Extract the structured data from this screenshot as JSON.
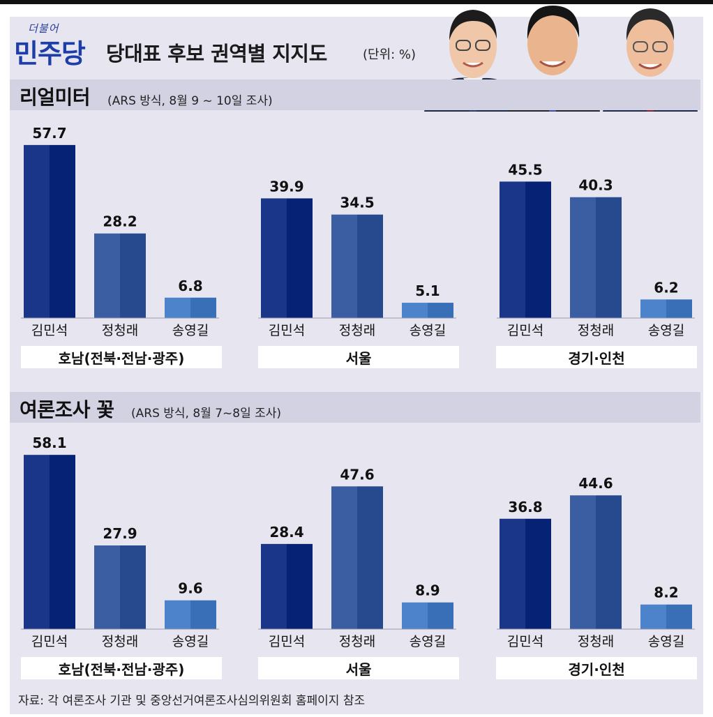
{
  "header": {
    "brand_small": "더불어",
    "brand": "민주당",
    "title": "당대표 후보 권역별 지지도",
    "unit": "(단위: %)"
  },
  "source": "자료: 각 여론조사 기관 및 중앙선거여론조사심의위원회 홈페이지 참조",
  "colors": {
    "kim": "#0d2a7c",
    "jung": "#2f5296",
    "song": "#4177bf"
  },
  "sections": [
    {
      "title": "리얼미터",
      "subtitle": "(ARS 방식, 8월 9 ~ 10일 조사)"
    },
    {
      "title": "여론조사 꽃",
      "subtitle": "(ARS 방식, 8월 7~8일 조사)"
    }
  ],
  "chart_data": [
    {
      "type": "bar",
      "title": "리얼미터",
      "categories": [
        "김민석",
        "정청래",
        "송영길"
      ],
      "groups": [
        "호남(전북·전남·광주)",
        "서울",
        "경기·인천"
      ],
      "series": [
        {
          "group": "호남(전북·전남·광주)",
          "values": [
            57.7,
            28.2,
            6.8
          ]
        },
        {
          "group": "서울",
          "values": [
            39.9,
            34.5,
            5.1
          ]
        },
        {
          "group": "경기·인천",
          "values": [
            45.5,
            40.3,
            6.2
          ]
        }
      ],
      "ylim": [
        0,
        60
      ],
      "grid": false
    },
    {
      "type": "bar",
      "title": "여론조사 꽃",
      "categories": [
        "김민석",
        "정청래",
        "송영길"
      ],
      "groups": [
        "호남(전북·전남·광주)",
        "서울",
        "경기·인천"
      ],
      "series": [
        {
          "group": "호남(전북·전남·광주)",
          "values": [
            58.1,
            27.9,
            9.6
          ]
        },
        {
          "group": "서울",
          "values": [
            28.4,
            47.6,
            8.9
          ]
        },
        {
          "group": "경기·인천",
          "values": [
            36.8,
            44.6,
            8.2
          ]
        }
      ],
      "ylim": [
        0,
        60
      ],
      "grid": false
    }
  ]
}
